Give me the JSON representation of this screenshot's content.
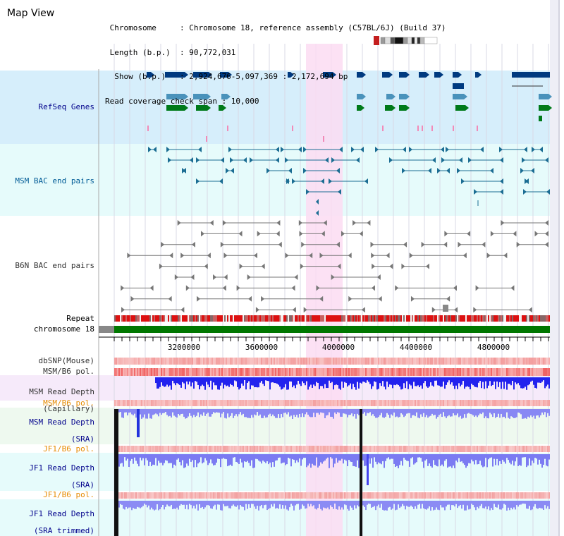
{
  "header": {
    "title": "Map View",
    "info_rows": [
      " Chromosome     : Chromosome 18, reference assembly (C57BL/6J) (Build 37)",
      " Length (b.p.)  : 90,772,031",
      "  Show (b.p.)   : 2,924,676-5,097,369 : 2,172,694 bp",
      "Read coverage check span : 10,000"
    ]
  },
  "tracks": {
    "refseq": "RefSeq Genes",
    "msm_bac": "MSM BAC end pairs",
    "b6n_bac": "B6N BAC end pairs",
    "repeat": "Repeat",
    "chromosome": "chromosome 18",
    "dbsnp": "dbSNP(Mouse)",
    "msm_b6_pol_1": "MSM/B6 pol.",
    "msm_depth_cap_1": "MSM Read Depth",
    "msm_depth_cap_2": "(Capillary)",
    "msm_b6_pol_2": "MSM/B6 pol.",
    "msm_depth_sra_1": "MSM Read Depth",
    "msm_depth_sra_2": "(SRA)",
    "jf1_b6_pol_1": "JF1/B6 pol.",
    "jf1_depth_sra_1": "JF1 Read Depth",
    "jf1_depth_sra_2": "(SRA)",
    "jf1_b6_pol_2": "JF1/B6 pol.",
    "jf1_depth_trim_1": "JF1 Read Depth",
    "jf1_depth_trim_2": "(SRA trimmed)"
  },
  "axis": {
    "ticks": [
      "3200000",
      "3600000",
      "4000000",
      "4400000",
      "4800000"
    ]
  },
  "colors": {
    "refseq_bg": "#d6eefb",
    "bac_bg": "#e6fbfb",
    "highlight": "#fcdcf2",
    "dark_blue": "#003a80",
    "steel": "#4a92bb",
    "green": "#007a1a",
    "teal_line": "#1b6d93",
    "depth_blue": "#2222ee",
    "depth_light": "#8888f4",
    "pol_red": "#f06060",
    "chrom_green": "#007700"
  }
}
